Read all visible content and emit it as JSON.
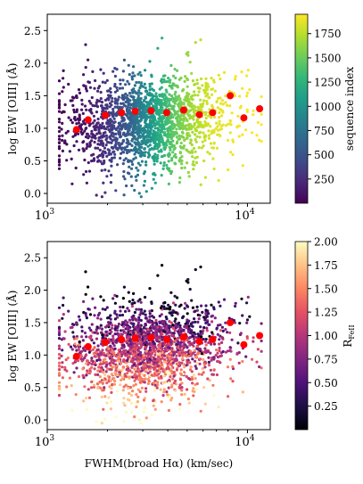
{
  "chart_data": [
    {
      "type": "scatter",
      "ylabel": "log EW [OIII] (Å)",
      "xlabel": "",
      "xscale": "log",
      "xlim": [
        1000,
        13000
      ],
      "ylim": [
        -0.15,
        2.75
      ],
      "x_ticks": [
        {
          "v": 1000,
          "label": "10",
          "sup": "3"
        },
        {
          "v": 10000,
          "label": "10",
          "sup": "4"
        }
      ],
      "y_ticks": [
        "0.0",
        "0.5",
        "1.0",
        "1.5",
        "2.0",
        "2.5"
      ],
      "colorbar": {
        "label": "sequence index",
        "range": [
          0,
          1950
        ],
        "ticks": [
          "250",
          "500",
          "750",
          "1000",
          "1250",
          "1500",
          "1750"
        ],
        "colormap": "viridis"
      },
      "color_by": "x_rank",
      "n_points": 1950,
      "binned_medians": {
        "color": "#ff0000",
        "x": [
          1400,
          1600,
          1950,
          2350,
          2750,
          3300,
          3950,
          4800,
          5750,
          6700,
          8200,
          9600,
          11500
        ],
        "y": [
          0.98,
          1.13,
          1.2,
          1.24,
          1.26,
          1.27,
          1.24,
          1.28,
          1.21,
          1.24,
          1.5,
          1.16,
          1.3
        ]
      }
    },
    {
      "type": "scatter",
      "ylabel": "log EW [OIII] (Å)",
      "xlabel": "FWHM(broad Hα) (km/sec)",
      "xscale": "log",
      "xlim": [
        1000,
        13000
      ],
      "ylim": [
        -0.15,
        2.75
      ],
      "x_ticks": [
        {
          "v": 1000,
          "label": "10",
          "sup": "3"
        },
        {
          "v": 10000,
          "label": "10",
          "sup": "4"
        }
      ],
      "y_ticks": [
        "0.0",
        "0.5",
        "1.0",
        "1.5",
        "2.0",
        "2.5"
      ],
      "colorbar": {
        "label": "R",
        "label_sub": "FeII",
        "range": [
          0.0,
          2.0
        ],
        "ticks": [
          "0.25",
          "0.50",
          "0.75",
          "1.00",
          "1.25",
          "1.50",
          "1.75",
          "2.00"
        ],
        "colormap": "magma"
      },
      "color_by": "RFeII_anticorrelated_with_y",
      "n_points": 1950,
      "binned_medians": {
        "color": "#ff0000",
        "x": [
          1400,
          1600,
          1950,
          2350,
          2750,
          3300,
          3950,
          4800,
          5750,
          6700,
          8200,
          9600,
          11500
        ],
        "y": [
          0.98,
          1.13,
          1.2,
          1.24,
          1.26,
          1.27,
          1.24,
          1.28,
          1.21,
          1.24,
          1.5,
          1.16,
          1.3
        ]
      }
    }
  ]
}
